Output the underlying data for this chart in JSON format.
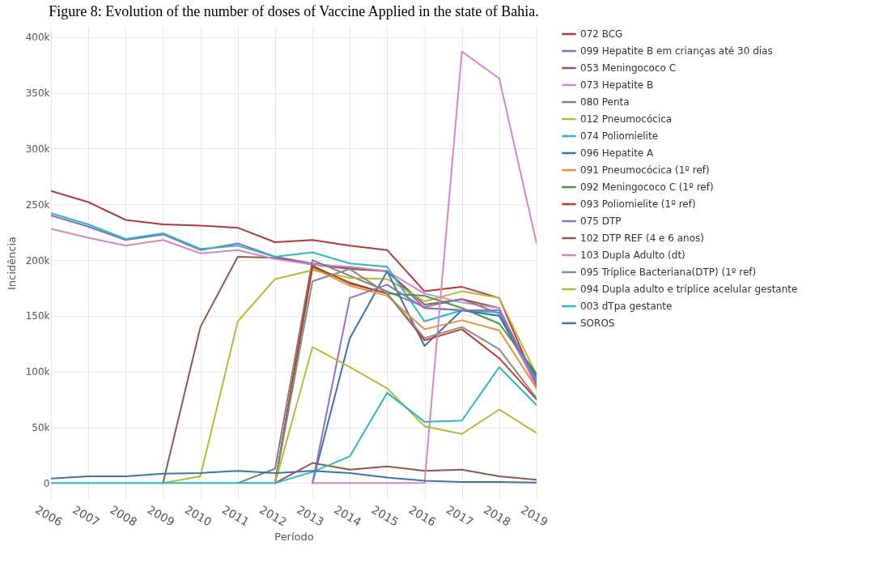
{
  "chart_data": {
    "type": "line",
    "title": "Figure 8: Evolution of the number of doses of Vaccine Applied in the state of Bahia.",
    "xlabel": "Período",
    "ylabel": "Incidência",
    "categories": [
      "2006",
      "2007",
      "2008",
      "2009",
      "2010",
      "2011",
      "2012",
      "2013",
      "2014",
      "2015",
      "2016",
      "2017",
      "2018",
      "2019"
    ],
    "ylim": [
      -15000,
      410000
    ],
    "yticks": [
      0,
      {
        "value": 50000,
        "label": "50k"
      },
      {
        "value": 100000,
        "label": "100k"
      },
      {
        "value": 150000,
        "label": "150k"
      },
      {
        "value": 200000,
        "label": "200k"
      },
      {
        "value": 250000,
        "label": "250k"
      },
      {
        "value": 300000,
        "label": "300k"
      },
      {
        "value": 350000,
        "label": "350k"
      },
      {
        "value": 400000,
        "label": "400k"
      }
    ],
    "grid": true,
    "legend": "right",
    "series": [
      {
        "name": "072 BCG",
        "color": "#b03a3a",
        "values": [
          262000,
          252000,
          236000,
          232000,
          231000,
          229000,
          216000,
          218000,
          213000,
          209000,
          172000,
          176000,
          166000,
          88000
        ]
      },
      {
        "name": "099 Hepatite B em crianças até 30 dias",
        "color": "#8a6cb8",
        "values": [
          240000,
          230000,
          218000,
          223000,
          209000,
          215000,
          203000,
          197000,
          193000,
          190000,
          157000,
          155000,
          150000,
          88000
        ]
      },
      {
        "name": "053 Meningococo C",
        "color": "#8c5a50",
        "values": [
          null,
          null,
          null,
          0,
          140000,
          203000,
          202000,
          196000,
          192000,
          190000,
          160000,
          165000,
          157000,
          88000
        ]
      },
      {
        "name": "073 Hepatite B",
        "color": "#d885c8",
        "values": [
          228000,
          220000,
          213000,
          218000,
          206000,
          209000,
          201000,
          196000,
          194000,
          190000,
          170000,
          162000,
          157000,
          85000
        ]
      },
      {
        "name": "080 Penta",
        "color": "#7f7f7f",
        "values": [
          null,
          null,
          null,
          null,
          null,
          0,
          13000,
          200000,
          186000,
          172000,
          158000,
          165000,
          152000,
          92000
        ]
      },
      {
        "name": "012 Pneumocócica",
        "color": "#b8b93a",
        "values": [
          null,
          null,
          null,
          0,
          6000,
          145000,
          183000,
          191000,
          184000,
          183000,
          163000,
          172000,
          166000,
          97000
        ]
      },
      {
        "name": "074 Poliomielite",
        "color": "#2bb7c9",
        "values": [
          242000,
          232000,
          219000,
          224000,
          210000,
          213000,
          203000,
          207000,
          197000,
          194000,
          145000,
          155000,
          153000,
          90000
        ]
      },
      {
        "name": "096 Hepatite A",
        "color": "#3a75a8",
        "values": [
          null,
          null,
          null,
          null,
          null,
          null,
          null,
          0,
          130000,
          190000,
          123000,
          155000,
          150000,
          95000
        ]
      },
      {
        "name": "091 Pneumocócica (1º ref)",
        "color": "#e8913a",
        "values": [
          null,
          null,
          null,
          null,
          null,
          null,
          0,
          193000,
          177000,
          168000,
          138000,
          146000,
          137000,
          85000
        ]
      },
      {
        "name": "092 Meningococo C (1º ref)",
        "color": "#3d9a48",
        "values": [
          null,
          null,
          null,
          null,
          null,
          null,
          0,
          194000,
          180000,
          170000,
          168000,
          157000,
          143000,
          98000
        ]
      },
      {
        "name": "093 Poliomielite (1º ref)",
        "color": "#c0392b",
        "values": [
          null,
          null,
          null,
          null,
          null,
          null,
          0,
          195000,
          179000,
          170000,
          128000,
          138000,
          112000,
          75000
        ]
      },
      {
        "name": "075 DTP",
        "color": "#9370c0",
        "values": [
          null,
          null,
          null,
          null,
          null,
          null,
          null,
          0,
          166000,
          178000,
          157000,
          155000,
          155000,
          90000
        ]
      },
      {
        "name": "102 DTP REF (4 e 6 anos)",
        "color": "#8c5a50",
        "values": [
          null,
          null,
          null,
          null,
          null,
          null,
          0,
          18000,
          12000,
          15000,
          11000,
          12000,
          6000,
          3000
        ]
      },
      {
        "name": "103 Dupla Adulto (dt)",
        "color": "#d885c8",
        "values": [
          null,
          null,
          null,
          null,
          null,
          null,
          null,
          0,
          0,
          0,
          0,
          387000,
          363000,
          215000
        ]
      },
      {
        "name": "095 Tríplice Bacteriana(DTP) (1º ref)",
        "color": "#8a8a8a",
        "values": [
          null,
          null,
          null,
          null,
          null,
          null,
          0,
          181000,
          192000,
          170000,
          130000,
          140000,
          120000,
          76000
        ]
      },
      {
        "name": "094 Dupla adulto e tríplice acelular gestante",
        "color": "#b8b93a",
        "values": [
          null,
          null,
          null,
          null,
          null,
          null,
          0,
          122000,
          104000,
          85000,
          51000,
          44000,
          66000,
          45000
        ]
      },
      {
        "name": "003 dTpa gestante",
        "color": "#2bb7c9",
        "values": [
          0,
          0,
          0,
          0,
          0,
          0,
          0,
          10000,
          24000,
          81000,
          55000,
          56000,
          104000,
          70000
        ]
      },
      {
        "name": "SOROS",
        "color": "#3a75a8",
        "values": [
          4000,
          6000,
          6000,
          8500,
          9000,
          11000,
          9000,
          11000,
          9000,
          5000,
          2000,
          1000,
          1000,
          500
        ]
      }
    ]
  }
}
